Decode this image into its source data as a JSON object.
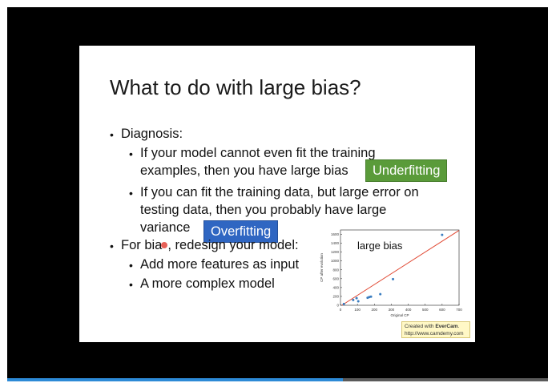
{
  "slide": {
    "title": "What to do with large bias?",
    "bullet_glyph": "•",
    "lines": [
      "Diagnosis:",
      "If your model cannot even fit the training",
      "examples, then you have large bias",
      "If you can fit the training data, but large error on",
      "testing data, then you probably have large",
      "variance",
      "For bia",
      ", redesign your model:",
      "Add more features as input",
      "A more complex model"
    ],
    "tags": {
      "underfitting": "Underfitting",
      "overfitting": "Overfitting"
    }
  },
  "chart_data": {
    "type": "scatter",
    "xlabel": "Original CP",
    "ylabel": "CP after evolution",
    "xlim": [
      0,
      700
    ],
    "ylim": [
      0,
      1700
    ],
    "xticks": [
      "0",
      "100",
      "200",
      "300",
      "400",
      "500",
      "600",
      "700"
    ],
    "yticks": [
      "0",
      "200",
      "400",
      "600",
      "800",
      "1000",
      "1200",
      "1400",
      "1600"
    ],
    "annotation": "large bias",
    "points": [
      {
        "x": 20,
        "y": 30
      },
      {
        "x": 75,
        "y": 120
      },
      {
        "x": 95,
        "y": 160
      },
      {
        "x": 105,
        "y": 90
      },
      {
        "x": 160,
        "y": 170
      },
      {
        "x": 170,
        "y": 185
      },
      {
        "x": 180,
        "y": 195
      },
      {
        "x": 235,
        "y": 250
      },
      {
        "x": 310,
        "y": 590
      },
      {
        "x": 600,
        "y": 1590
      }
    ],
    "fit_line": {
      "x": [
        0,
        700
      ],
      "y": [
        -20,
        1690
      ]
    },
    "point_color": "#3b7dc0",
    "line_color": "#e0452f"
  },
  "watermark": {
    "prefix": "Created with",
    "brand": "EverCam",
    "url": "http://www.camdemy.com"
  },
  "player": {
    "progress": 0.62,
    "accent": "#2d8ad6"
  }
}
